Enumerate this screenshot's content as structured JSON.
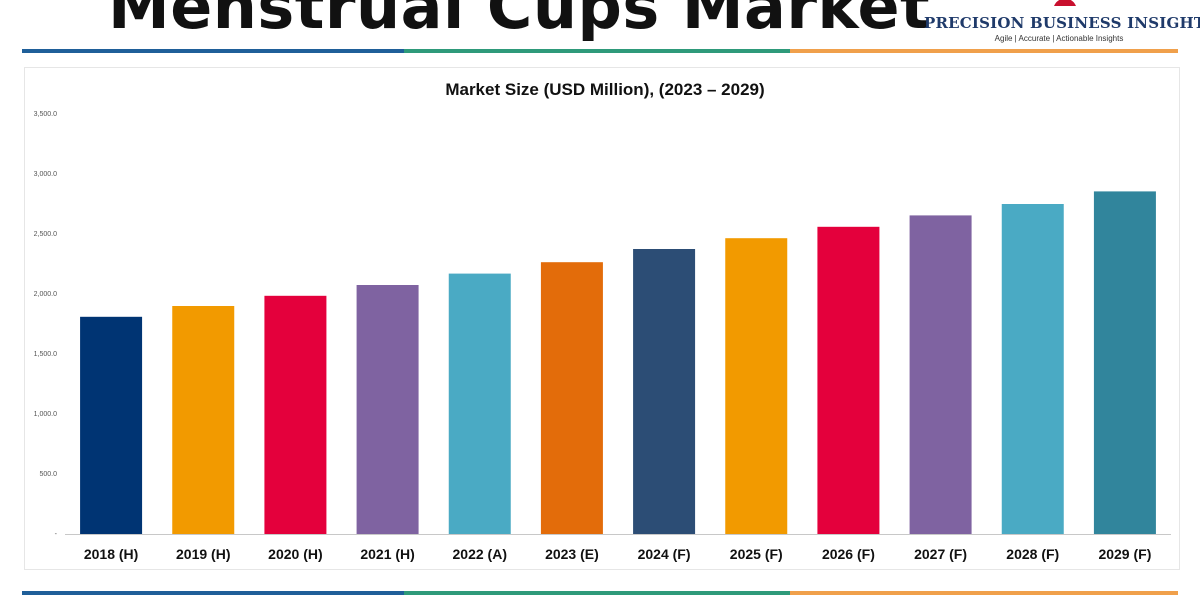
{
  "header": {
    "title": "Menstrual Cups Market",
    "logo_name": "PRECISION BUSINESS INSIGHTS",
    "logo_tagline": "Agile | Accurate | Actionable Insights"
  },
  "colors": {
    "stripe": [
      "#1f5f99",
      "#2e9a7a",
      "#f0a04b"
    ],
    "axis": "#c8c8c8",
    "logo_mark": "#c8102e"
  },
  "icons": {
    "logo": "logo-mark-icon"
  },
  "chart_data": {
    "type": "bar",
    "title": "Market Size (USD Million), (2023 – 2029)",
    "xlabel": "",
    "ylabel": "",
    "ylim": [
      0,
      3500
    ],
    "y_ticks": [
      {
        "value": 0,
        "label": "-"
      },
      {
        "value": 500,
        "label": "500.0"
      },
      {
        "value": 1000,
        "label": "1,000.0"
      },
      {
        "value": 1500,
        "label": "1,500.0"
      },
      {
        "value": 2000,
        "label": "2,000.0"
      },
      {
        "value": 2500,
        "label": "2,500.0"
      },
      {
        "value": 3000,
        "label": "3,000.0"
      },
      {
        "value": 3500,
        "label": "3,500.0"
      }
    ],
    "grid": false,
    "legend": "none",
    "categories": [
      "2018 (H)",
      "2019 (H)",
      "2020 (H)",
      "2021 (H)",
      "2022 (A)",
      "2023 (E)",
      "2024 (F)",
      "2025 (F)",
      "2026 (F)",
      "2027 (F)",
      "2028 (F)",
      "2029 (F)"
    ],
    "values": [
      1810,
      1900,
      1985,
      2075,
      2170,
      2265,
      2375,
      2465,
      2560,
      2655,
      2750,
      2855
    ],
    "bar_colors": [
      "#003473",
      "#f29a00",
      "#e4003c",
      "#7f63a1",
      "#4aaac4",
      "#e36c0a",
      "#2c4d75",
      "#f29a00",
      "#e4003c",
      "#7f63a1",
      "#4aaac4",
      "#31859c"
    ]
  }
}
